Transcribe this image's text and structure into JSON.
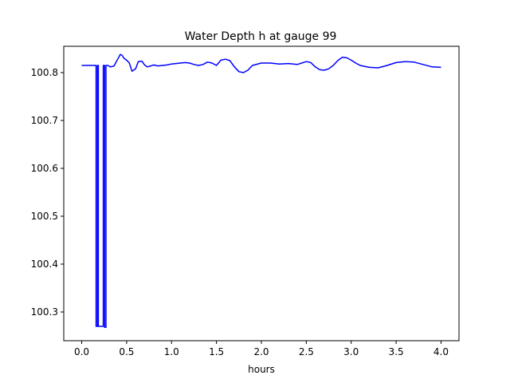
{
  "chart_data": {
    "type": "line",
    "title": "Water Depth h at gauge 99",
    "xlabel": "hours",
    "ylabel": "",
    "xlim": [
      -0.2,
      4.2
    ],
    "ylim": [
      100.24,
      100.855
    ],
    "xticks": [
      0.0,
      0.5,
      1.0,
      1.5,
      2.0,
      2.5,
      3.0,
      3.5,
      4.0
    ],
    "xtick_labels": [
      "0.0",
      "0.5",
      "1.0",
      "1.5",
      "2.0",
      "2.5",
      "3.0",
      "3.5",
      "4.0"
    ],
    "yticks": [
      100.3,
      100.4,
      100.5,
      100.6,
      100.7,
      100.8
    ],
    "ytick_labels": [
      "100.3",
      "100.4",
      "100.5",
      "100.6",
      "100.7",
      "100.8"
    ],
    "grid": false,
    "series": [
      {
        "color": "#0000ff",
        "x": [
          0.0,
          0.05,
          0.1,
          0.15,
          0.16,
          0.16,
          0.175,
          0.175,
          0.185,
          0.185,
          0.24,
          0.24,
          0.255,
          0.255,
          0.27,
          0.27,
          0.29,
          0.32,
          0.36,
          0.4,
          0.43,
          0.45,
          0.47,
          0.5,
          0.53,
          0.56,
          0.6,
          0.63,
          0.67,
          0.7,
          0.73,
          0.77,
          0.8,
          0.85,
          0.9,
          0.95,
          1.0,
          1.05,
          1.1,
          1.15,
          1.2,
          1.25,
          1.3,
          1.35,
          1.4,
          1.45,
          1.5,
          1.55,
          1.6,
          1.65,
          1.7,
          1.75,
          1.8,
          1.85,
          1.9,
          2.0,
          2.1,
          2.2,
          2.3,
          2.4,
          2.5,
          2.55,
          2.6,
          2.65,
          2.7,
          2.75,
          2.8,
          2.85,
          2.9,
          2.95,
          3.0,
          3.05,
          3.1,
          3.2,
          3.3,
          3.4,
          3.5,
          3.6,
          3.7,
          3.8,
          3.9,
          4.0
        ],
        "y": [
          100.815,
          100.815,
          100.815,
          100.815,
          100.815,
          100.27,
          100.27,
          100.815,
          100.815,
          100.27,
          100.27,
          100.815,
          100.815,
          100.268,
          100.268,
          100.815,
          100.815,
          100.812,
          100.814,
          100.828,
          100.838,
          100.836,
          100.83,
          100.826,
          100.82,
          100.803,
          100.808,
          100.823,
          100.824,
          100.816,
          100.812,
          100.814,
          100.816,
          100.814,
          100.815,
          100.816,
          100.818,
          100.819,
          100.82,
          100.821,
          100.82,
          100.817,
          100.815,
          100.817,
          100.822,
          100.82,
          100.815,
          100.826,
          100.828,
          100.825,
          100.812,
          100.802,
          100.8,
          100.805,
          100.815,
          100.82,
          100.82,
          100.818,
          100.819,
          100.817,
          100.823,
          100.821,
          100.812,
          100.806,
          100.805,
          100.808,
          100.815,
          100.825,
          100.832,
          100.831,
          100.826,
          100.82,
          100.815,
          100.811,
          100.81,
          100.815,
          100.821,
          100.823,
          100.822,
          100.817,
          100.812,
          100.811
        ]
      }
    ]
  }
}
